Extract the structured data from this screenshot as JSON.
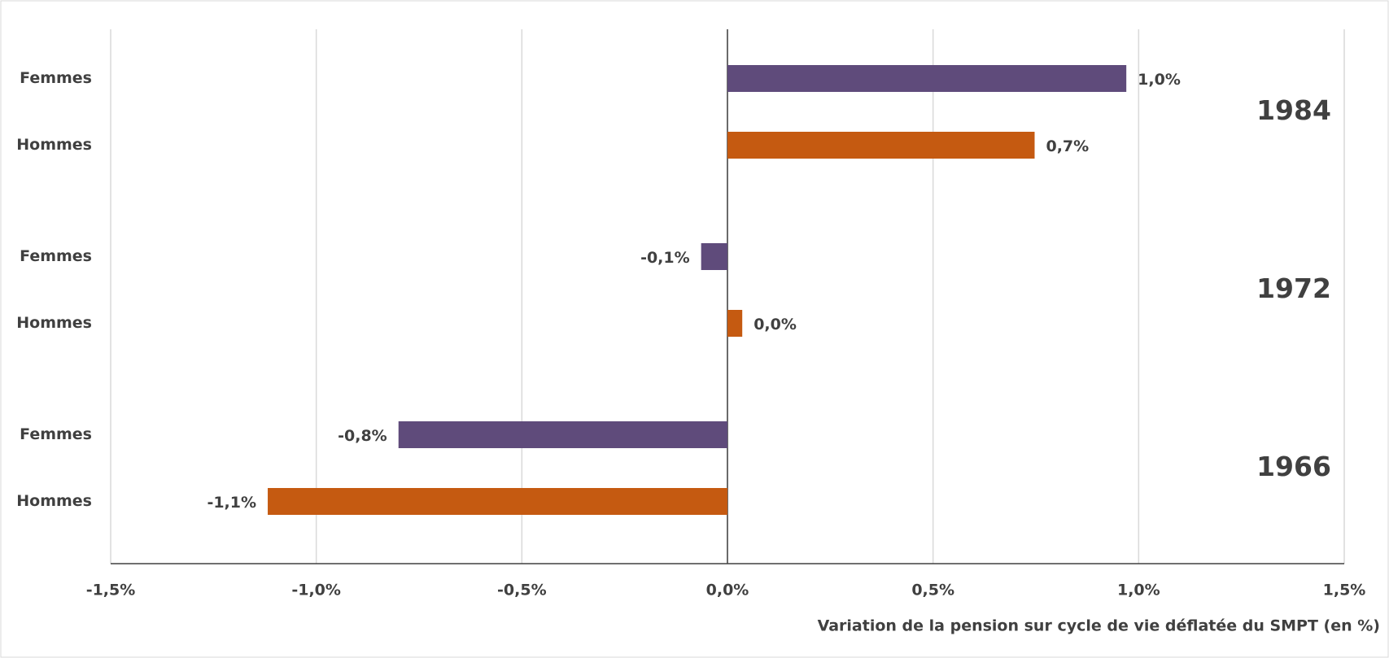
{
  "chart_data": {
    "type": "hbar",
    "x_label": "Variation de la pension sur cycle de vie déflatée du SMPT (en %)",
    "categories": [
      "1984",
      "1972",
      "1966"
    ],
    "series": [
      {
        "name": "Femmes",
        "color": "#5f4b7b",
        "values": [
          0.97,
          -0.064,
          -0.8
        ],
        "value_labels": [
          "1,0%",
          "-0,1%",
          "-0,8%"
        ]
      },
      {
        "name": "Hommes",
        "color": "#c55a11",
        "values": [
          0.747,
          0.036,
          -1.118
        ],
        "value_labels": [
          "0,7%",
          "0,0%",
          "-1,1%"
        ]
      }
    ],
    "xlim": [
      -1.5,
      1.5
    ],
    "xticks": [
      {
        "value": -1.5,
        "label": "-1,5%"
      },
      {
        "value": -1.0,
        "label": "-1,0%"
      },
      {
        "value": -0.5,
        "label": "-0,5%"
      },
      {
        "value": 0.0,
        "label": "0,0%"
      },
      {
        "value": 0.5,
        "label": "0,5%"
      },
      {
        "value": 1.0,
        "label": "1,0%"
      },
      {
        "value": 1.5,
        "label": "1,5%"
      }
    ],
    "grid": true
  }
}
